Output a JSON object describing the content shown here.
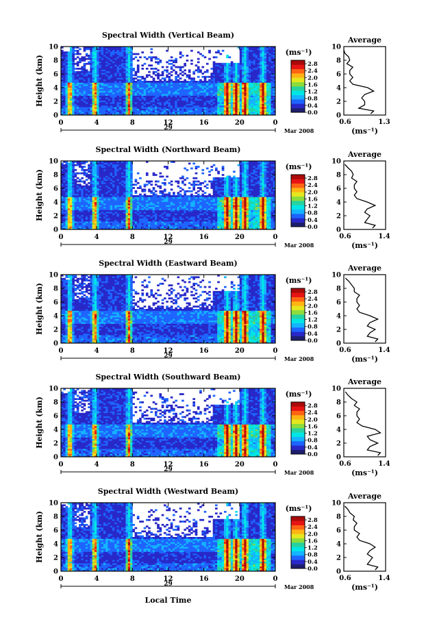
{
  "common": {
    "ylabel": "Height (km)",
    "xlabel": "Local Time",
    "date_day": "29",
    "date_month_year": "Mar 2008",
    "x_ticks": [
      "0",
      "4",
      "8",
      "12",
      "16",
      "20",
      "0"
    ],
    "y_ticks": [
      "0",
      "2",
      "4",
      "6",
      "8",
      "10"
    ],
    "colorbar_unit": "(ms⁻¹)",
    "colorbar_ticks": [
      "0.0",
      "0.4",
      "0.8",
      "1.2",
      "1.6",
      "2.0",
      "2.4",
      "2.8"
    ],
    "average_title": "Average",
    "average_unit": "(ms⁻¹)",
    "colors": {
      "colormap": [
        "#1e1e6e",
        "#2828c8",
        "#1e64ff",
        "#14b4ff",
        "#00e6e6",
        "#28d2a0",
        "#8cdc3c",
        "#e6e61e",
        "#ffb414",
        "#ff6414",
        "#e61414",
        "#aa0a0a"
      ]
    }
  },
  "chart_data": [
    {
      "type": "heatmap",
      "title": "Spectral Width (Vertical Beam)",
      "xlim": [
        0,
        24
      ],
      "ylim": [
        0,
        10
      ],
      "colorbar_range": [
        0.0,
        3.0
      ],
      "strong_columns_hours": [
        1.0,
        3.8,
        7.6,
        18.6,
        19.6,
        20.6,
        22.6
      ],
      "average_profile": {
        "type": "line",
        "title": "Average",
        "xlim": [
          0.6,
          1.3
        ],
        "x_ticks": [
          "0.6",
          "1.3"
        ],
        "height_km": [
          0.2,
          0.6,
          1.0,
          1.5,
          2.0,
          2.5,
          3.0,
          3.5,
          4.0,
          4.5,
          5.0,
          5.5,
          6.0,
          6.5,
          7.0,
          7.5,
          8.0,
          8.5,
          9.0,
          9.5
        ],
        "width_ms": [
          1.05,
          1.1,
          0.85,
          0.95,
          0.95,
          0.9,
          0.95,
          1.1,
          1.0,
          0.75,
          0.7,
          0.75,
          0.7,
          0.7,
          0.75,
          0.65,
          0.7,
          0.68,
          0.62,
          0.6
        ]
      }
    },
    {
      "type": "heatmap",
      "title": "Spectral Width (Northward Beam)",
      "xlim": [
        0,
        24
      ],
      "ylim": [
        0,
        10
      ],
      "colorbar_range": [
        0.0,
        3.0
      ],
      "strong_columns_hours": [
        1.0,
        3.8,
        7.6,
        18.6,
        19.6,
        20.6,
        22.6
      ],
      "average_profile": {
        "type": "line",
        "title": "Average",
        "xlim": [
          0.6,
          1.4
        ],
        "x_ticks": [
          "0.6",
          "1.4"
        ],
        "height_km": [
          0.2,
          0.6,
          1.0,
          1.5,
          2.0,
          2.5,
          3.0,
          3.5,
          4.0,
          4.5,
          5.0,
          5.5,
          6.0,
          6.5,
          7.0,
          7.5,
          8.0,
          8.5,
          9.0,
          9.5
        ],
        "width_ms": [
          1.15,
          1.2,
          1.0,
          1.05,
          1.1,
          1.0,
          1.05,
          1.2,
          1.05,
          0.85,
          0.8,
          0.85,
          0.8,
          0.8,
          0.85,
          0.75,
          0.78,
          0.75,
          0.68,
          0.62
        ]
      }
    },
    {
      "type": "heatmap",
      "title": "Spectral Width (Eastward Beam)",
      "xlim": [
        0,
        24
      ],
      "ylim": [
        0,
        10
      ],
      "colorbar_range": [
        0.0,
        3.0
      ],
      "strong_columns_hours": [
        1.0,
        3.8,
        7.6,
        18.6,
        19.6,
        20.6,
        22.6
      ],
      "average_profile": {
        "type": "line",
        "title": "Average",
        "xlim": [
          0.6,
          1.4
        ],
        "x_ticks": [
          "0.6",
          "1.4"
        ],
        "height_km": [
          0.2,
          0.6,
          1.0,
          1.5,
          2.0,
          2.5,
          3.0,
          3.5,
          4.0,
          4.5,
          5.0,
          5.5,
          6.0,
          6.5,
          7.0,
          7.5,
          8.0,
          8.5,
          9.0,
          9.5
        ],
        "width_ms": [
          1.2,
          1.25,
          1.05,
          1.1,
          1.2,
          1.05,
          1.1,
          1.25,
          1.1,
          0.9,
          0.85,
          0.9,
          0.85,
          0.85,
          0.9,
          0.8,
          0.8,
          0.75,
          0.7,
          0.63
        ]
      }
    },
    {
      "type": "heatmap",
      "title": "Spectral Width (Southward Beam)",
      "xlim": [
        0,
        24
      ],
      "ylim": [
        0,
        10
      ],
      "colorbar_range": [
        0.0,
        3.0
      ],
      "strong_columns_hours": [
        1.0,
        3.8,
        7.6,
        18.6,
        19.6,
        20.6,
        22.6
      ],
      "average_profile": {
        "type": "line",
        "title": "Average",
        "xlim": [
          0.6,
          1.4
        ],
        "x_ticks": [
          "0.6",
          "1.4"
        ],
        "height_km": [
          0.2,
          0.6,
          1.0,
          1.5,
          2.0,
          2.5,
          3.0,
          3.5,
          4.0,
          4.5,
          5.0,
          5.5,
          6.0,
          6.5,
          7.0,
          7.5,
          8.0,
          8.5,
          9.0,
          9.5
        ],
        "width_ms": [
          1.25,
          1.3,
          1.05,
          1.1,
          1.25,
          1.1,
          1.05,
          1.3,
          1.2,
          0.95,
          0.85,
          0.9,
          0.85,
          0.85,
          0.9,
          0.8,
          0.85,
          0.75,
          0.68,
          0.63
        ]
      }
    },
    {
      "type": "heatmap",
      "title": "Spectral Width (Westward Beam)",
      "xlim": [
        0,
        24
      ],
      "ylim": [
        0,
        10
      ],
      "colorbar_range": [
        0.0,
        3.0
      ],
      "strong_columns_hours": [
        1.0,
        3.8,
        7.6,
        18.6,
        19.6,
        20.6,
        22.6
      ],
      "average_profile": {
        "type": "line",
        "title": "Average",
        "xlim": [
          0.6,
          1.4
        ],
        "x_ticks": [
          "0.6",
          "1.4"
        ],
        "height_km": [
          0.2,
          0.6,
          1.0,
          1.5,
          2.0,
          2.5,
          3.0,
          3.5,
          4.0,
          4.5,
          5.0,
          5.5,
          6.0,
          6.5,
          7.0,
          7.5,
          8.0,
          8.5,
          9.0,
          9.5
        ],
        "width_ms": [
          1.2,
          1.25,
          1.05,
          1.1,
          1.15,
          1.05,
          1.1,
          1.2,
          1.1,
          0.9,
          0.85,
          0.9,
          0.8,
          0.8,
          0.85,
          0.78,
          0.8,
          0.72,
          0.68,
          0.62
        ]
      }
    }
  ]
}
